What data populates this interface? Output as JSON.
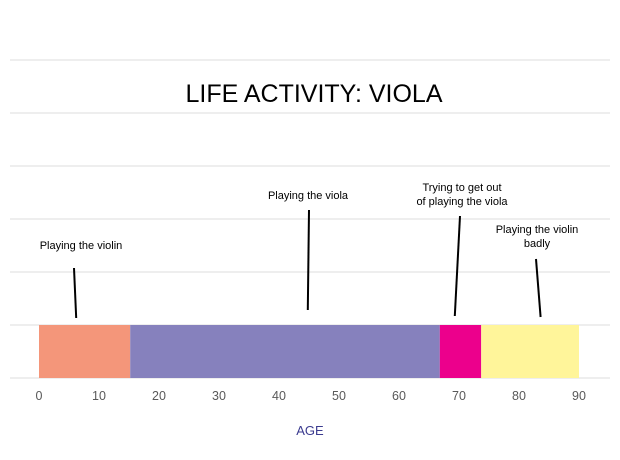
{
  "chart_data": {
    "type": "bar",
    "orientation": "horizontal-stacked",
    "title": "LIFE ACTIVITY: VIOLA",
    "xlabel": "AGE",
    "ylabel": "",
    "xlim": [
      0,
      90
    ],
    "xticks": [
      "0",
      "10",
      "20",
      "30",
      "40",
      "50",
      "60",
      "70",
      "80",
      "90"
    ],
    "grid": true,
    "legend": "none",
    "segments": [
      {
        "name": "Playing the violin",
        "start": 0,
        "end": 15.2,
        "color": "#f4967a"
      },
      {
        "name": "Playing the viola",
        "start": 15.2,
        "end": 66.8,
        "color": "#8681bd"
      },
      {
        "name": "Trying to get out of playing the viola",
        "start": 66.8,
        "end": 73.7,
        "color": "#ec008c"
      },
      {
        "name": "Playing the violin badly",
        "start": 73.7,
        "end": 90,
        "color": "#fff59a"
      }
    ],
    "annotations": [
      {
        "lines": [
          "Playing the violin"
        ],
        "points_to_age": 6.2
      },
      {
        "lines": [
          "Playing the viola"
        ],
        "points_to_age": 44.8
      },
      {
        "lines": [
          "Trying to get out",
          "of playing the viola"
        ],
        "points_to_age": 69.3
      },
      {
        "lines": [
          "Playing the violin",
          "badly"
        ],
        "points_to_age": 83.6
      }
    ]
  }
}
